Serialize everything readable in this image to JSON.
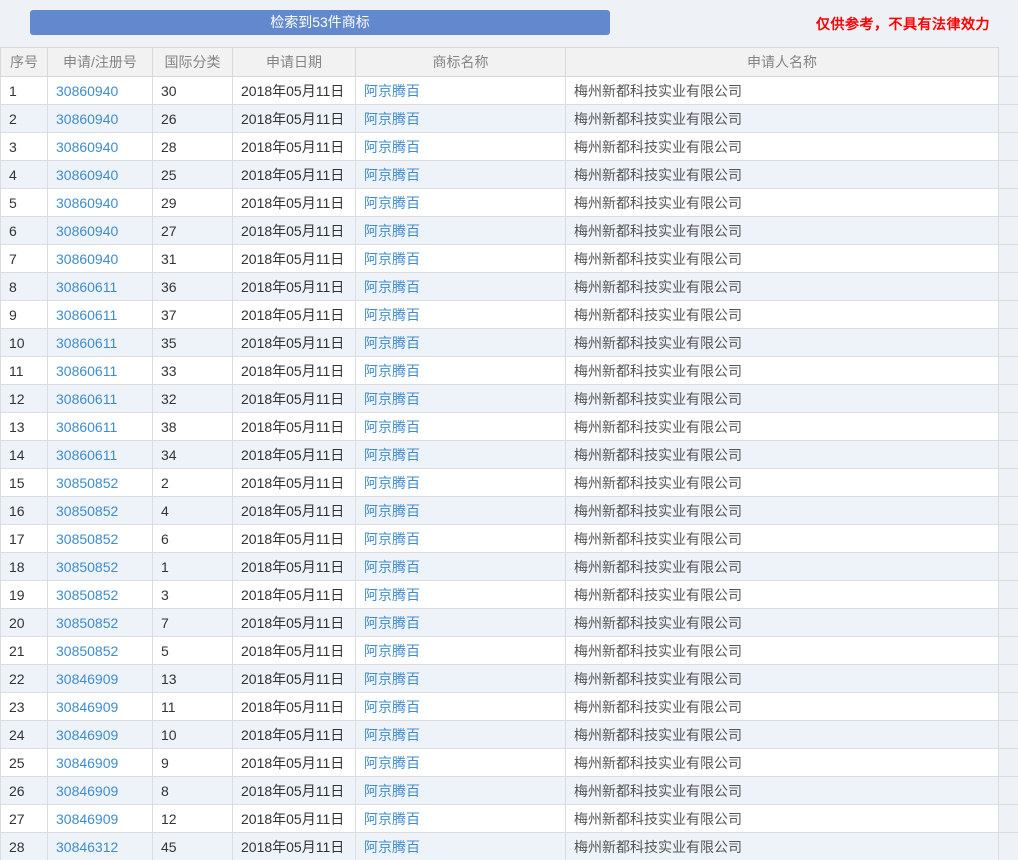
{
  "banner": {
    "result_button_label": "检索到53件商标",
    "disclaimer": "仅供参考，不具有法律效力"
  },
  "table": {
    "headers": [
      "序号",
      "申请/注册号",
      "国际分类",
      "申请日期",
      "商标名称",
      "申请人名称"
    ],
    "rows": [
      [
        "1",
        "30860940",
        "30",
        "2018年05月11日",
        "阿京腾百",
        "梅州新都科技实业有限公司"
      ],
      [
        "2",
        "30860940",
        "26",
        "2018年05月11日",
        "阿京腾百",
        "梅州新都科技实业有限公司"
      ],
      [
        "3",
        "30860940",
        "28",
        "2018年05月11日",
        "阿京腾百",
        "梅州新都科技实业有限公司"
      ],
      [
        "4",
        "30860940",
        "25",
        "2018年05月11日",
        "阿京腾百",
        "梅州新都科技实业有限公司"
      ],
      [
        "5",
        "30860940",
        "29",
        "2018年05月11日",
        "阿京腾百",
        "梅州新都科技实业有限公司"
      ],
      [
        "6",
        "30860940",
        "27",
        "2018年05月11日",
        "阿京腾百",
        "梅州新都科技实业有限公司"
      ],
      [
        "7",
        "30860940",
        "31",
        "2018年05月11日",
        "阿京腾百",
        "梅州新都科技实业有限公司"
      ],
      [
        "8",
        "30860611",
        "36",
        "2018年05月11日",
        "阿京腾百",
        "梅州新都科技实业有限公司"
      ],
      [
        "9",
        "30860611",
        "37",
        "2018年05月11日",
        "阿京腾百",
        "梅州新都科技实业有限公司"
      ],
      [
        "10",
        "30860611",
        "35",
        "2018年05月11日",
        "阿京腾百",
        "梅州新都科技实业有限公司"
      ],
      [
        "11",
        "30860611",
        "33",
        "2018年05月11日",
        "阿京腾百",
        "梅州新都科技实业有限公司"
      ],
      [
        "12",
        "30860611",
        "32",
        "2018年05月11日",
        "阿京腾百",
        "梅州新都科技实业有限公司"
      ],
      [
        "13",
        "30860611",
        "38",
        "2018年05月11日",
        "阿京腾百",
        "梅州新都科技实业有限公司"
      ],
      [
        "14",
        "30860611",
        "34",
        "2018年05月11日",
        "阿京腾百",
        "梅州新都科技实业有限公司"
      ],
      [
        "15",
        "30850852",
        "2",
        "2018年05月11日",
        "阿京腾百",
        "梅州新都科技实业有限公司"
      ],
      [
        "16",
        "30850852",
        "4",
        "2018年05月11日",
        "阿京腾百",
        "梅州新都科技实业有限公司"
      ],
      [
        "17",
        "30850852",
        "6",
        "2018年05月11日",
        "阿京腾百",
        "梅州新都科技实业有限公司"
      ],
      [
        "18",
        "30850852",
        "1",
        "2018年05月11日",
        "阿京腾百",
        "梅州新都科技实业有限公司"
      ],
      [
        "19",
        "30850852",
        "3",
        "2018年05月11日",
        "阿京腾百",
        "梅州新都科技实业有限公司"
      ],
      [
        "20",
        "30850852",
        "7",
        "2018年05月11日",
        "阿京腾百",
        "梅州新都科技实业有限公司"
      ],
      [
        "21",
        "30850852",
        "5",
        "2018年05月11日",
        "阿京腾百",
        "梅州新都科技实业有限公司"
      ],
      [
        "22",
        "30846909",
        "13",
        "2018年05月11日",
        "阿京腾百",
        "梅州新都科技实业有限公司"
      ],
      [
        "23",
        "30846909",
        "11",
        "2018年05月11日",
        "阿京腾百",
        "梅州新都科技实业有限公司"
      ],
      [
        "24",
        "30846909",
        "10",
        "2018年05月11日",
        "阿京腾百",
        "梅州新都科技实业有限公司"
      ],
      [
        "25",
        "30846909",
        "9",
        "2018年05月11日",
        "阿京腾百",
        "梅州新都科技实业有限公司"
      ],
      [
        "26",
        "30846909",
        "8",
        "2018年05月11日",
        "阿京腾百",
        "梅州新都科技实业有限公司"
      ],
      [
        "27",
        "30846909",
        "12",
        "2018年05月11日",
        "阿京腾百",
        "梅州新都科技实业有限公司"
      ],
      [
        "28",
        "30846312",
        "45",
        "2018年05月11日",
        "阿京腾百",
        "梅州新都科技实业有限公司"
      ]
    ]
  },
  "colors": {
    "button_blue": "#6289ce",
    "link_blue": "#3e8cce",
    "disclaimer_red": "#ff0000",
    "header_bg": "#f2f2f2",
    "row_stripe": "#eef3f9",
    "page_bg": "#eef2f7"
  }
}
